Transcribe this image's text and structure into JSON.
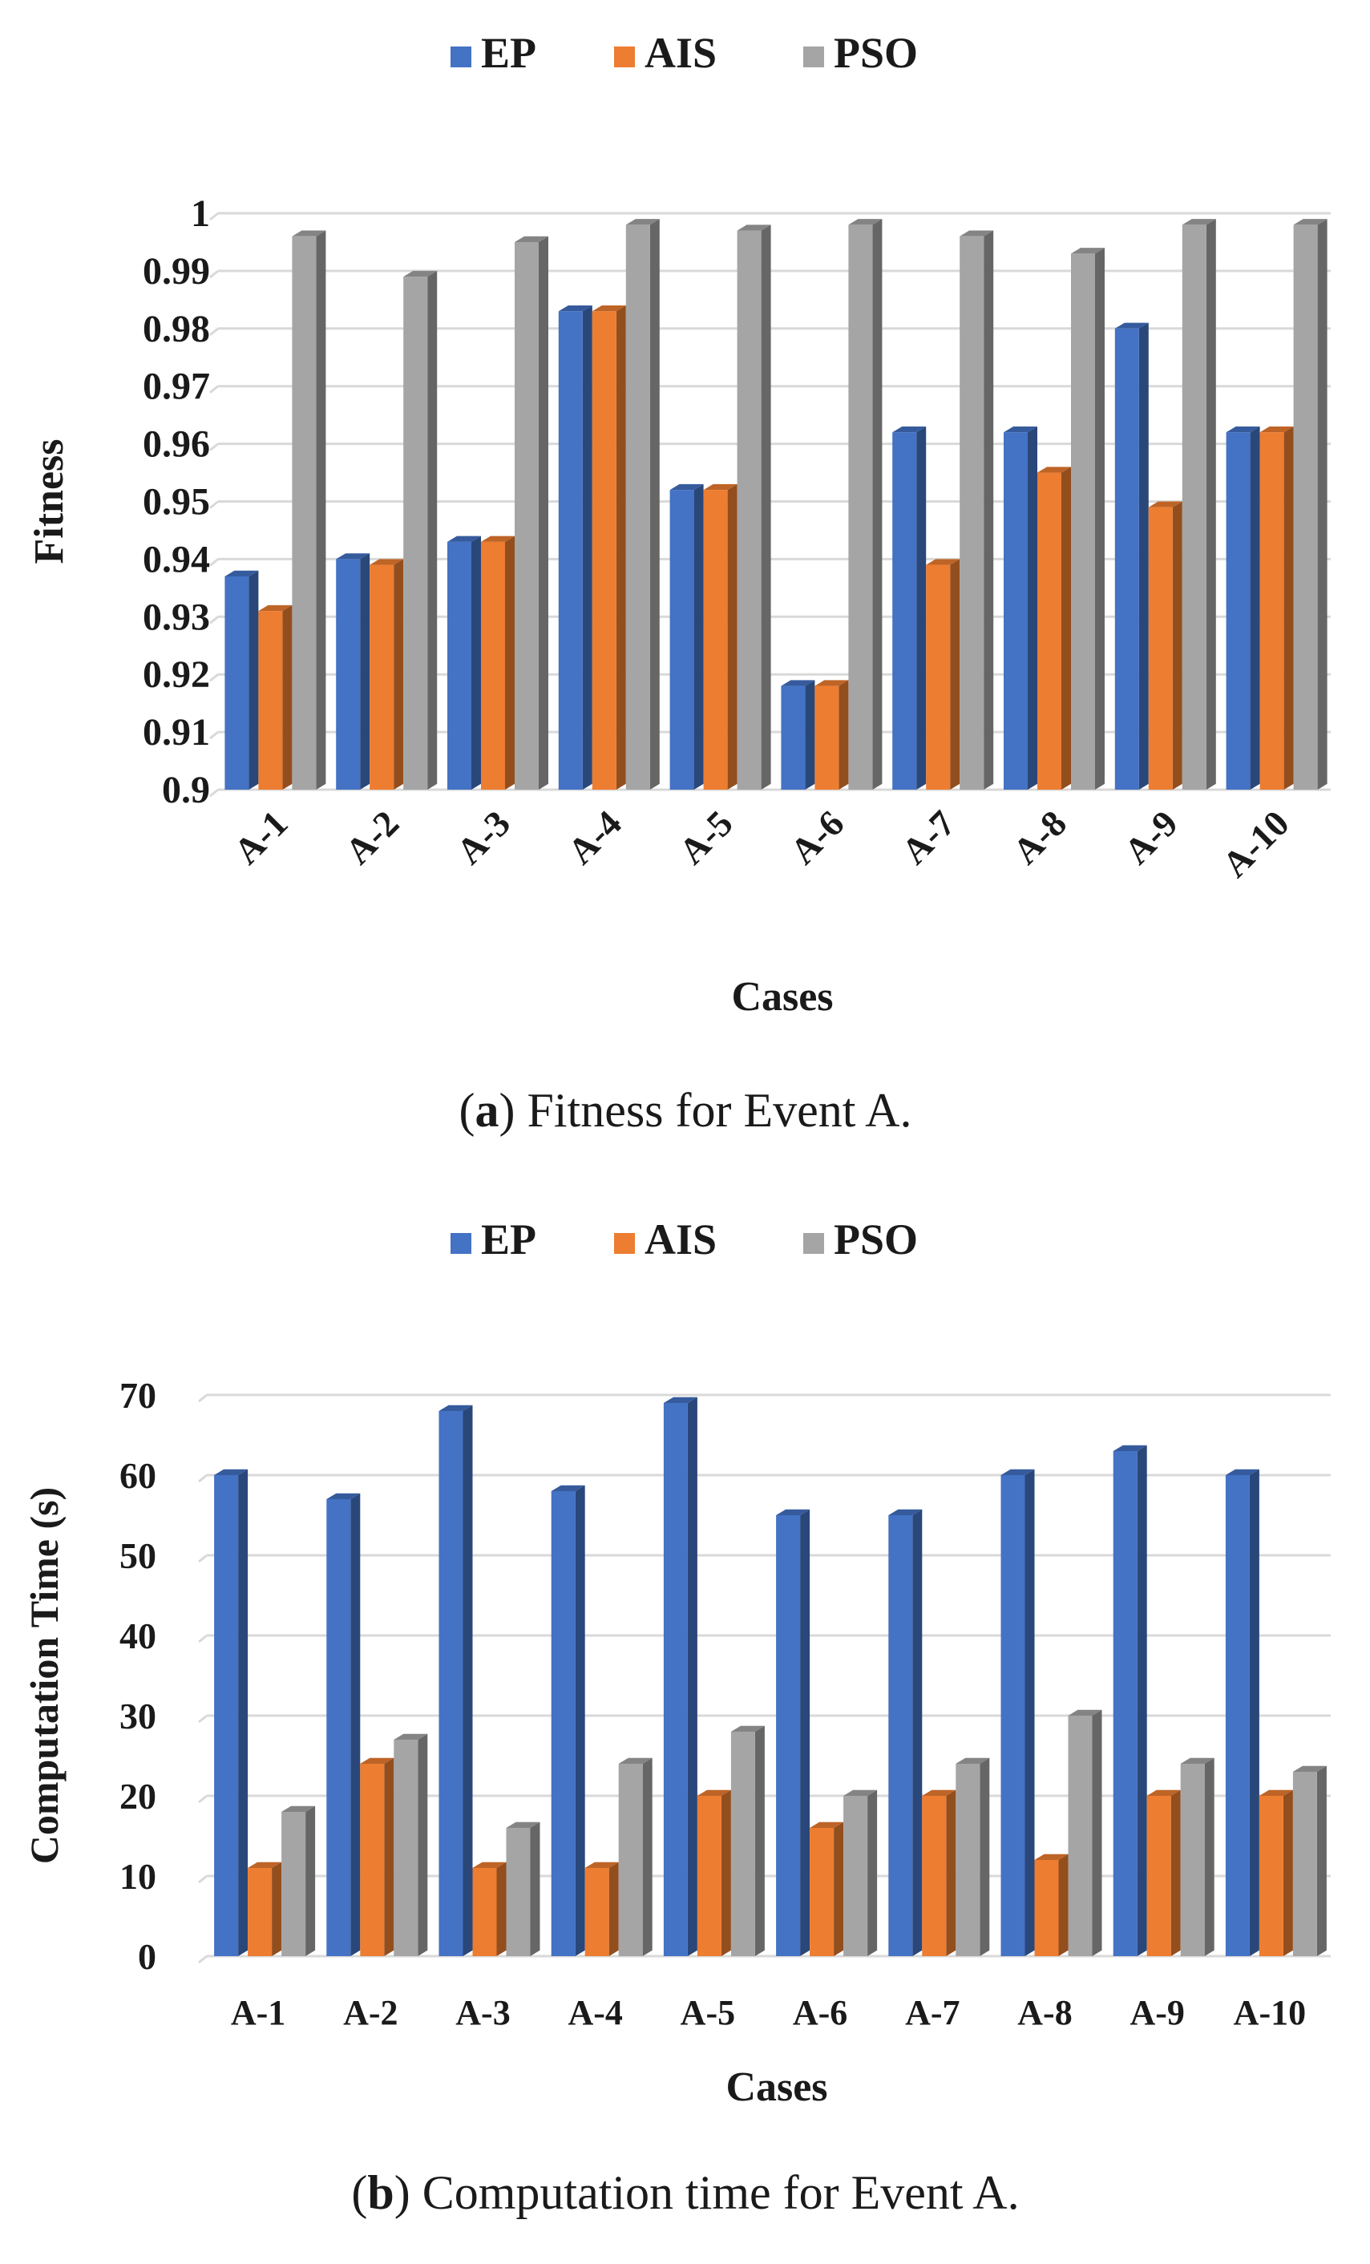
{
  "chart_data": [
    {
      "type": "bar",
      "title": "",
      "caption": {
        "letter": "a",
        "text": ") Fitness for Event A.",
        "open": "("
      },
      "xlabel": "Cases",
      "ylabel": "Fitness",
      "ylim": [
        0.9,
        1.0
      ],
      "yticks": [
        0.9,
        0.91,
        0.92,
        0.93,
        0.94,
        0.95,
        0.96,
        0.97,
        0.98,
        0.99,
        1
      ],
      "ytick_labels": [
        "0.9",
        "0.91",
        "0.92",
        "0.93",
        "0.94",
        "0.95",
        "0.96",
        "0.97",
        "0.98",
        "0.99",
        "1"
      ],
      "grid": true,
      "legend_position": "top",
      "categories": [
        "A-1",
        "A-2",
        "A-3",
        "A-4",
        "A-5",
        "A-6",
        "A-7",
        "A-8",
        "A-9",
        "A-10"
      ],
      "series": [
        {
          "name": "EP",
          "color": "#4472c4",
          "values": [
            0.937,
            0.94,
            0.943,
            0.983,
            0.952,
            0.918,
            0.962,
            0.962,
            0.98,
            0.962
          ]
        },
        {
          "name": "AIS",
          "color": "#ed7d31",
          "values": [
            0.931,
            0.939,
            0.943,
            0.983,
            0.952,
            0.918,
            0.939,
            0.955,
            0.949,
            0.962
          ]
        },
        {
          "name": "PSO",
          "color": "#a5a5a5",
          "values": [
            0.996,
            0.989,
            0.995,
            0.998,
            0.997,
            0.998,
            0.996,
            0.993,
            0.998,
            0.998
          ]
        }
      ]
    },
    {
      "type": "bar",
      "title": "",
      "caption": {
        "letter": "b",
        "text": ") Computation time for Event A.",
        "open": "("
      },
      "xlabel": "Cases",
      "ylabel": "Computation Time (s)",
      "ylim": [
        0,
        70
      ],
      "yticks": [
        0,
        10,
        20,
        30,
        40,
        50,
        60,
        70
      ],
      "ytick_labels": [
        "0",
        "10",
        "20",
        "30",
        "40",
        "50",
        "60",
        "70"
      ],
      "grid": true,
      "legend_position": "top",
      "categories": [
        "A-1",
        "A-2",
        "A-3",
        "A-4",
        "A-5",
        "A-6",
        "A-7",
        "A-8",
        "A-9",
        "A-10"
      ],
      "series": [
        {
          "name": "EP",
          "color": "#4472c4",
          "values": [
            60,
            57,
            68,
            58,
            69,
            55,
            55,
            60,
            63,
            60
          ]
        },
        {
          "name": "AIS",
          "color": "#ed7d31",
          "values": [
            11,
            24,
            11,
            11,
            20,
            16,
            20,
            12,
            20,
            20
          ]
        },
        {
          "name": "PSO",
          "color": "#a5a5a5",
          "values": [
            18,
            27,
            16,
            24,
            28,
            20,
            24,
            30,
            24,
            23
          ]
        }
      ]
    }
  ]
}
